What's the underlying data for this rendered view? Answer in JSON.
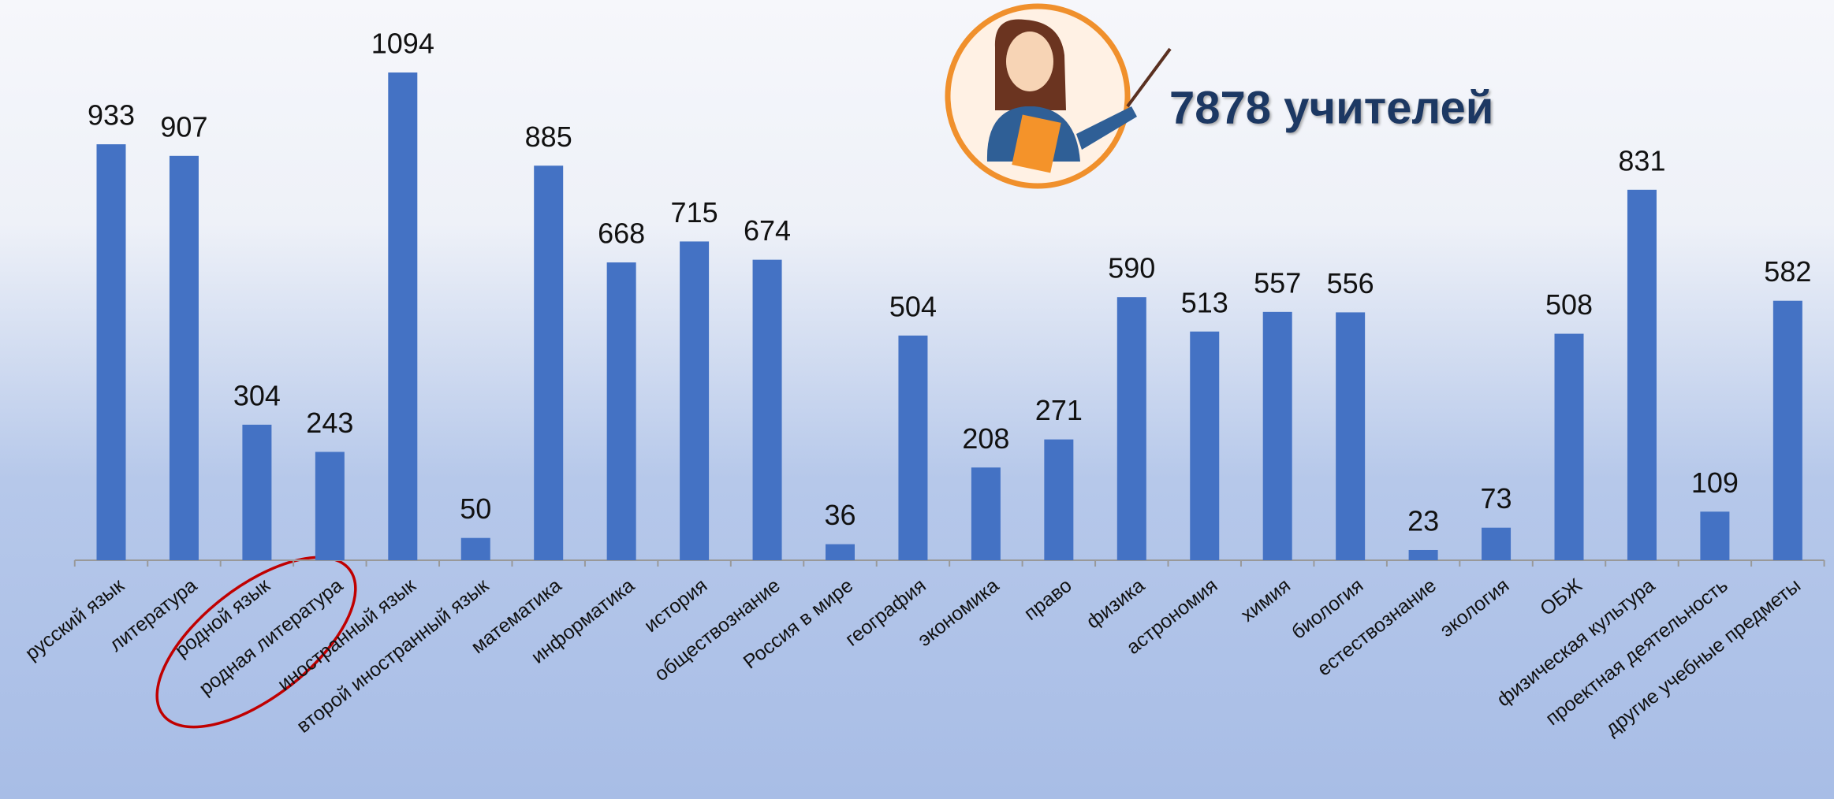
{
  "chart_data": {
    "type": "bar",
    "title": "7878 учителей",
    "categories": [
      "русский язык",
      "литература",
      "родной язык",
      "родная литература",
      "иностранный язык",
      "второй иностранный язык",
      "математика",
      "информатика",
      "история",
      "обществознание",
      "Россия в мире",
      "география",
      "экономика",
      "право",
      "физика",
      "астрономия",
      "химия",
      "биология",
      "естествознание",
      "экология",
      "ОБЖ",
      "физическая культура",
      "проектная деятельность",
      "другие учебные предметы"
    ],
    "values": [
      933,
      907,
      304,
      243,
      1094,
      50,
      885,
      668,
      715,
      674,
      36,
      504,
      208,
      271,
      590,
      513,
      557,
      556,
      23,
      73,
      508,
      831,
      109,
      582
    ],
    "color": "#4472c4"
  }
}
